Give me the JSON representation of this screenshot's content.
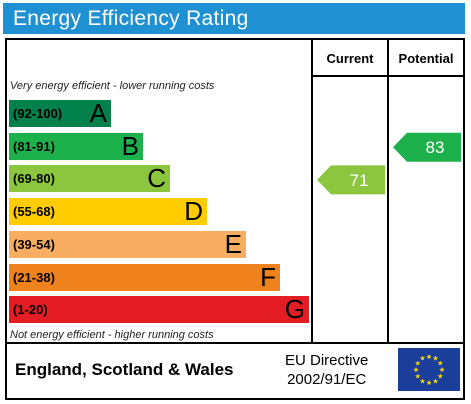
{
  "title": "Energy Efficiency Rating",
  "columns": {
    "current": "Current",
    "potential": "Potential"
  },
  "top_note": "Very energy efficient - lower running costs",
  "bottom_note": "Not energy efficient - higher running costs",
  "footer": {
    "region": "England, Scotland & Wales",
    "directive_line1": "EU Directive",
    "directive_line2": "2002/91/EC"
  },
  "colors": {
    "title_bg": "#1f90d2",
    "A": "#00804a",
    "B": "#1db14b",
    "C": "#8cc63f",
    "D": "#ffcc00",
    "E": "#f7ae63",
    "F": "#f0821e",
    "G": "#e31d23",
    "eu_flag": "#1a3e9a",
    "eu_star": "#ffdd00"
  },
  "chart_data": {
    "type": "bar",
    "categories": [
      "A",
      "B",
      "C",
      "D",
      "E",
      "F",
      "G"
    ],
    "bands": [
      {
        "letter": "A",
        "range": "(92-100)"
      },
      {
        "letter": "B",
        "range": "(81-91)"
      },
      {
        "letter": "C",
        "range": "(69-80)"
      },
      {
        "letter": "D",
        "range": "(55-68)"
      },
      {
        "letter": "E",
        "range": "(39-54)"
      },
      {
        "letter": "F",
        "range": "(21-38)"
      },
      {
        "letter": "G",
        "range": "(1-20)"
      }
    ],
    "current": {
      "value": 71,
      "band": "C"
    },
    "potential": {
      "value": 83,
      "band": "B"
    }
  }
}
